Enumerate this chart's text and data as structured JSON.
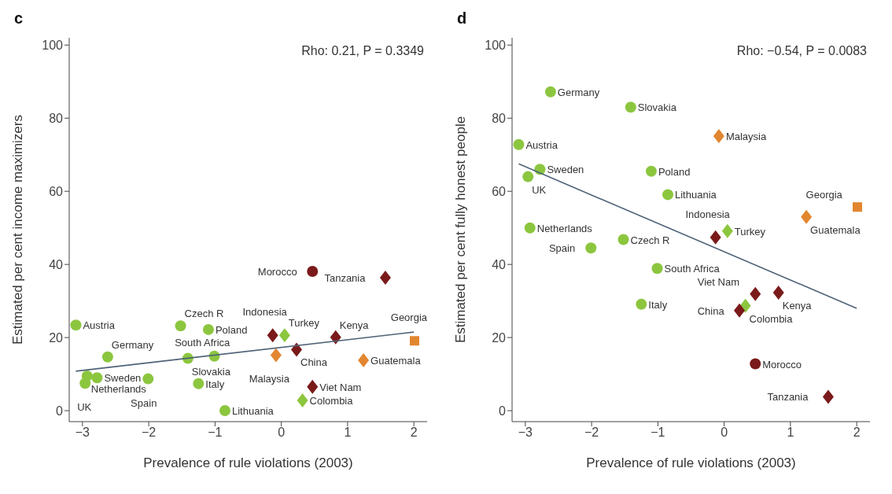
{
  "chart_data": [
    {
      "type": "scatter",
      "title": "c",
      "xlabel": "Prevalence of rule violations (2003)",
      "ylabel": "Estimated per cent income maximizers",
      "xlim": [
        -3.2,
        2.2
      ],
      "ylim": [
        -3,
        102
      ],
      "xticks": [
        -3,
        -2,
        -1,
        0,
        1,
        2
      ],
      "yticks": [
        0,
        20,
        40,
        60,
        80,
        100
      ],
      "grid": false,
      "legend": false,
      "series": [
        {
          "color": "#8cc63f",
          "marker": "circle",
          "x": [
            -3.1,
            -2.62,
            -2.93,
            -2.96,
            -2.78,
            -2.01,
            -1.52,
            -1.41,
            -1.1,
            -1.25,
            -1.01,
            -0.85
          ],
          "values": [
            23.4,
            14.7,
            9.5,
            7.5,
            9,
            8.7,
            23.2,
            14.3,
            22.2,
            7.4,
            14.9,
            0
          ]
        },
        {
          "color": "#8cc63f",
          "marker": "diamond",
          "x": [
            0.05,
            0.32
          ],
          "values": [
            20.6,
            2.8
          ]
        },
        {
          "color": "#7a1a1a",
          "marker": "diamond",
          "x": [
            -0.13,
            0.23,
            0.82,
            0.47,
            1.57
          ],
          "values": [
            20.6,
            16.7,
            20.1,
            6.5,
            36.4
          ]
        },
        {
          "color": "#7a1a1a",
          "marker": "circle",
          "x": [
            0.47
          ],
          "values": [
            38.1
          ]
        },
        {
          "color": "#e2862f",
          "marker": "diamond",
          "x": [
            -0.08,
            1.24
          ],
          "values": [
            15.2,
            13.8
          ]
        },
        {
          "color": "#e2862f",
          "marker": "square",
          "x": [
            2.01
          ],
          "values": [
            19.1
          ]
        },
        {
          "type": "line",
          "color": "#4f6378",
          "marker": "none",
          "x": [
            -3.1,
            2.0
          ],
          "values": [
            10.8,
            21.5
          ]
        }
      ],
      "annotations": [
        "Rho: 0.21, P = 0.3349",
        {
          "text": "Austria",
          "x": -3.1,
          "y": 23.4
        },
        {
          "text": "Germany",
          "x": -2.62,
          "y": 14.7
        },
        {
          "text": "Netherlands",
          "x": -2.93,
          "y": 9.5
        },
        {
          "text": "UK",
          "x": -2.96,
          "y": 7.5
        },
        {
          "text": "Sweden",
          "x": -2.78,
          "y": 9
        },
        {
          "text": "Spain",
          "x": -2.01,
          "y": 8.7
        },
        {
          "text": "Czech R",
          "x": -1.52,
          "y": 23.2
        },
        {
          "text": "Slovakia",
          "x": -1.41,
          "y": 14.3
        },
        {
          "text": "Poland",
          "x": -1.1,
          "y": 22.2
        },
        {
          "text": "Italy",
          "x": -1.25,
          "y": 7.4
        },
        {
          "text": "South Africa",
          "x": -1.01,
          "y": 14.9
        },
        {
          "text": "Lithuania",
          "x": -0.85,
          "y": 0
        },
        {
          "text": "Turkey",
          "x": 0.05,
          "y": 20.6
        },
        {
          "text": "Colombia",
          "x": 0.32,
          "y": 2.8
        },
        {
          "text": "Indonesia",
          "x": -0.13,
          "y": 20.6
        },
        {
          "text": "China",
          "x": 0.23,
          "y": 16.7
        },
        {
          "text": "Kenya",
          "x": 0.82,
          "y": 20.1
        },
        {
          "text": "Viet Nam",
          "x": 0.47,
          "y": 6.5
        },
        {
          "text": "Tanzania",
          "x": 1.57,
          "y": 36.4
        },
        {
          "text": "Morocco",
          "x": 0.47,
          "y": 38.1
        },
        {
          "text": "Malaysia",
          "x": -0.08,
          "y": 15.2
        },
        {
          "text": "Guatemala",
          "x": 1.24,
          "y": 13.8
        },
        {
          "text": "Georgia",
          "x": 2.01,
          "y": 19.1
        }
      ]
    },
    {
      "type": "scatter",
      "title": "d",
      "xlabel": "Prevalence of rule violations (2003)",
      "ylabel": "Estimated per cent fully honest people",
      "xlim": [
        -3.2,
        2.2
      ],
      "ylim": [
        -3,
        102
      ],
      "xticks": [
        -3,
        -2,
        -1,
        0,
        1,
        2
      ],
      "yticks": [
        0,
        20,
        40,
        60,
        80,
        100
      ],
      "grid": false,
      "legend": false,
      "series": [
        {
          "color": "#8cc63f",
          "marker": "circle",
          "x": [
            -3.1,
            -2.62,
            -2.93,
            -2.96,
            -2.78,
            -2.01,
            -1.52,
            -1.41,
            -1.1,
            -1.25,
            -1.01,
            -0.85
          ],
          "values": [
            72.8,
            87.2,
            50,
            64,
            66,
            44.5,
            46.8,
            83,
            65.5,
            29.1,
            38.9,
            59.1
          ]
        },
        {
          "color": "#8cc63f",
          "marker": "diamond",
          "x": [
            0.05,
            0.32
          ],
          "values": [
            49.1,
            28.7
          ]
        },
        {
          "color": "#7a1a1a",
          "marker": "diamond",
          "x": [
            -0.13,
            0.23,
            0.82,
            0.47,
            1.57
          ],
          "values": [
            47.4,
            27.4,
            32.3,
            31.9,
            3.8
          ]
        },
        {
          "color": "#7a1a1a",
          "marker": "circle",
          "x": [
            0.47
          ],
          "values": [
            12.8
          ]
        },
        {
          "color": "#e2862f",
          "marker": "diamond",
          "x": [
            -0.08,
            1.24
          ],
          "values": [
            75.1,
            53
          ]
        },
        {
          "color": "#e2862f",
          "marker": "square",
          "x": [
            2.01
          ],
          "values": [
            55.7
          ]
        },
        {
          "type": "line",
          "color": "#4f6378",
          "marker": "none",
          "x": [
            -3.1,
            2.0
          ],
          "values": [
            67.5,
            28
          ]
        }
      ],
      "annotations": [
        "Rho: −0.54, P = 0.0083",
        {
          "text": "Austria",
          "x": -3.1,
          "y": 72.8
        },
        {
          "text": "Germany",
          "x": -2.62,
          "y": 87.2
        },
        {
          "text": "Netherlands",
          "x": -2.93,
          "y": 50
        },
        {
          "text": "UK",
          "x": -2.96,
          "y": 64
        },
        {
          "text": "Sweden",
          "x": -2.78,
          "y": 66
        },
        {
          "text": "Spain",
          "x": -2.01,
          "y": 44.5
        },
        {
          "text": "Czech R",
          "x": -1.52,
          "y": 46.8
        },
        {
          "text": "Slovakia",
          "x": -1.41,
          "y": 83
        },
        {
          "text": "Poland",
          "x": -1.1,
          "y": 65.5
        },
        {
          "text": "Italy",
          "x": -1.25,
          "y": 29.1
        },
        {
          "text": "South Africa",
          "x": -1.01,
          "y": 38.9
        },
        {
          "text": "Lithuania",
          "x": -0.85,
          "y": 59.1
        },
        {
          "text": "Turkey",
          "x": 0.05,
          "y": 49.1
        },
        {
          "text": "Colombia",
          "x": 0.32,
          "y": 28.7
        },
        {
          "text": "Indonesia",
          "x": -0.13,
          "y": 47.4
        },
        {
          "text": "China",
          "x": 0.23,
          "y": 27.4
        },
        {
          "text": "Kenya",
          "x": 0.82,
          "y": 32.3
        },
        {
          "text": "Viet Nam",
          "x": 0.47,
          "y": 31.9
        },
        {
          "text": "Tanzania",
          "x": 1.57,
          "y": 3.8
        },
        {
          "text": "Morocco",
          "x": 0.47,
          "y": 12.8
        },
        {
          "text": "Malaysia",
          "x": -0.08,
          "y": 75.1
        },
        {
          "text": "Guatemala",
          "x": 1.24,
          "y": 53
        },
        {
          "text": "Georgia",
          "x": 2.01,
          "y": 55.7
        }
      ]
    }
  ]
}
